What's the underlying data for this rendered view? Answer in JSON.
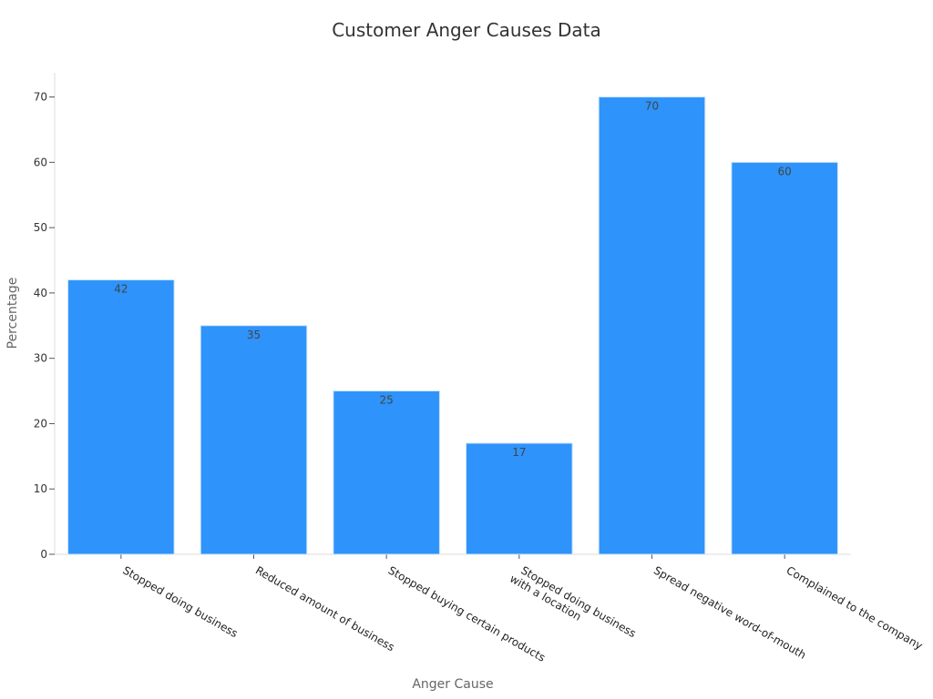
{
  "chart_data": {
    "type": "bar",
    "title": "Customer Anger Causes Data",
    "xlabel": "Anger Cause",
    "ylabel": "Percentage",
    "categories": [
      [
        "Stopped doing business"
      ],
      [
        "Reduced amount of business"
      ],
      [
        "Stopped buying certain products"
      ],
      [
        "Stopped doing business",
        "with a location"
      ],
      [
        "Spread negative word-of-mouth"
      ],
      [
        "Complained to the company"
      ]
    ],
    "values": [
      42,
      35,
      25,
      17,
      70,
      60
    ],
    "yticks": [
      0,
      10,
      20,
      30,
      40,
      50,
      60,
      70
    ],
    "ylim": [
      0,
      73.7
    ],
    "grid": false,
    "bar_color": "#2e93fa",
    "bar_stroke_color": "#c9e2fb",
    "axis_color": "#dddddd"
  }
}
